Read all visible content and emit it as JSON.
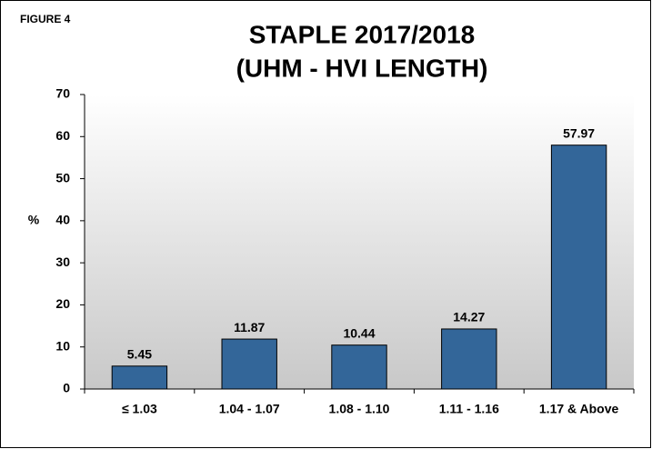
{
  "chart_data": {
    "type": "bar",
    "figure_label": "FIGURE 4",
    "title": "STAPLE 2017/2018",
    "subtitle": "(UHM - HVI LENGTH)",
    "y_label": "%",
    "categories": [
      "≤ 1.03",
      "1.04 - 1.07",
      "1.08 - 1.10",
      "1.11 - 1.16",
      "1.17 & Above"
    ],
    "values": [
      5.45,
      11.87,
      10.44,
      14.27,
      57.97
    ],
    "color": "#336699",
    "ylim": [
      0,
      70
    ],
    "yticks": [
      0,
      10,
      20,
      30,
      40,
      50,
      60,
      70
    ],
    "grid": false
  }
}
